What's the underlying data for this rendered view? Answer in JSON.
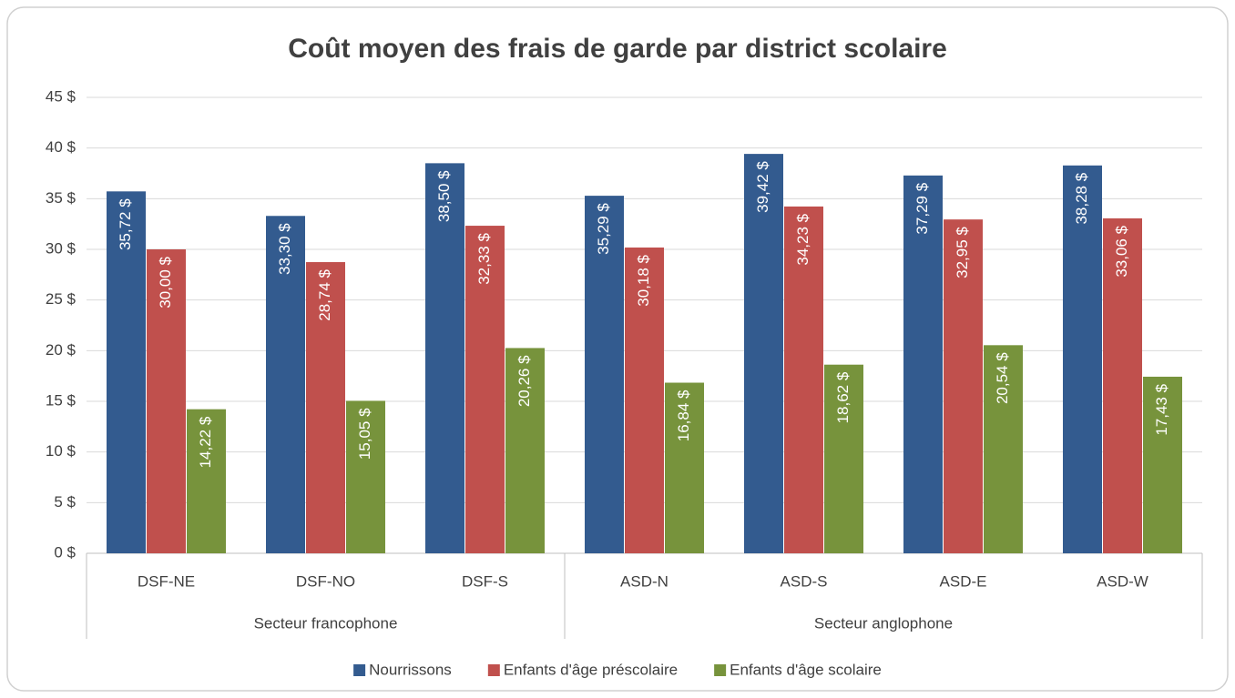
{
  "chart_data": {
    "type": "bar",
    "title": "Coût moyen des frais de garde par district scolaire",
    "categories": [
      "DSF-NE",
      "DSF-NO",
      "DSF-S",
      "ASD-N",
      "ASD-S",
      "ASD-E",
      "ASD-W"
    ],
    "groups": [
      {
        "name": "Secteur francophone",
        "count": 3
      },
      {
        "name": "Secteur anglophone",
        "count": 4
      }
    ],
    "series": [
      {
        "name": "Nourrissons",
        "color": "#335b8f",
        "values": [
          35.72,
          33.3,
          38.5,
          35.29,
          39.42,
          37.29,
          38.28
        ],
        "value_labels": [
          "35,72 $",
          "33,30 $",
          "38,50 $",
          "35,29 $",
          "39,42 $",
          "37,29 $",
          "38,28 $"
        ]
      },
      {
        "name": "Enfants d'âge préscolaire",
        "color": "#c0504d",
        "values": [
          30.0,
          28.74,
          32.33,
          30.18,
          34.23,
          32.95,
          33.06
        ],
        "value_labels": [
          "30,00 $",
          "28,74 $",
          "32,33 $",
          "30,18 $",
          "34,23 $",
          "32,95 $",
          "33,06 $"
        ]
      },
      {
        "name": "Enfants d'âge scolaire",
        "color": "#77933c",
        "values": [
          14.22,
          15.05,
          20.26,
          16.84,
          18.62,
          20.54,
          17.43
        ],
        "value_labels": [
          "14,22 $",
          "15,05 $",
          "20,26 $",
          "16,84 $",
          "18,62 $",
          "20,54 $",
          "17,43 $"
        ]
      }
    ],
    "ylim": [
      0,
      45
    ],
    "yticks": [
      {
        "value": 0,
        "label": "0 $"
      },
      {
        "value": 5,
        "label": "5 $"
      },
      {
        "value": 10,
        "label": "10 $"
      },
      {
        "value": 15,
        "label": "15 $"
      },
      {
        "value": 20,
        "label": "20 $"
      },
      {
        "value": 25,
        "label": "25 $"
      },
      {
        "value": 30,
        "label": "30 $"
      },
      {
        "value": 35,
        "label": "35 $"
      },
      {
        "value": 40,
        "label": "40 $"
      },
      {
        "value": 45,
        "label": "45 $"
      }
    ],
    "grid": true,
    "legend": "bottom"
  }
}
